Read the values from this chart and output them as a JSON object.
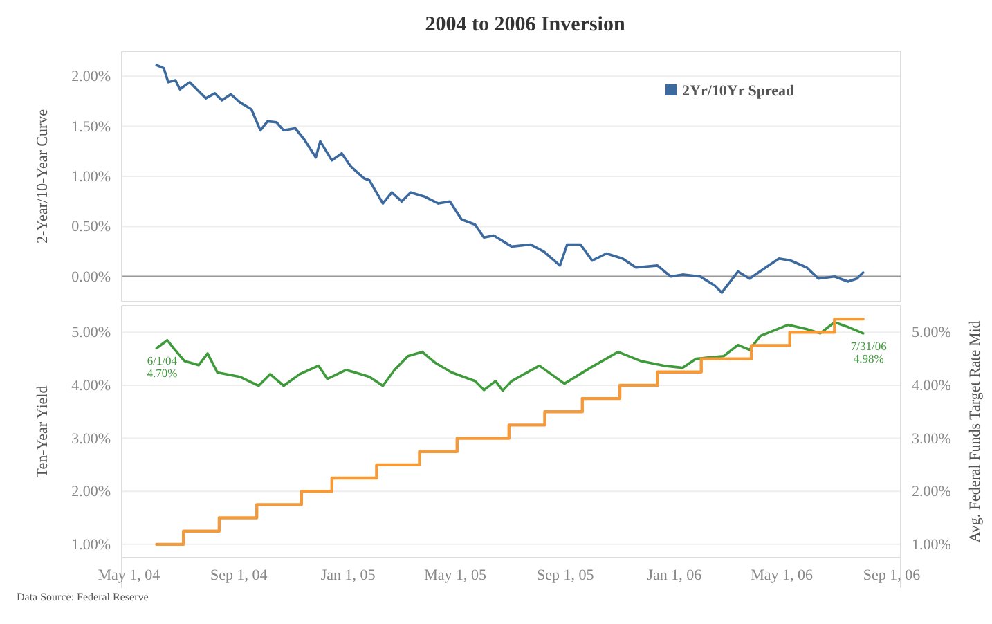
{
  "chart_data": [
    {
      "type": "line",
      "title": "2004 to 2006 Inversion",
      "ylabel": "2-Year/10-Year Curve",
      "xlim": [
        "2004-04-23",
        "2006-09-11"
      ],
      "ylim": [
        -0.25,
        2.25
      ],
      "yticks": [
        {
          "value": 0,
          "label": "0.00%"
        },
        {
          "value": 0.5,
          "label": "0.50%"
        },
        {
          "value": 1,
          "label": "1.00%"
        },
        {
          "value": 1.5,
          "label": "1.50%"
        },
        {
          "value": 2,
          "label": "2.00%"
        }
      ],
      "grid": "y",
      "legend": "top right",
      "tick_labels": "y",
      "ref_lines": [
        {
          "axis": "y",
          "value": 0,
          "color": "#999999"
        }
      ],
      "series": [
        {
          "name": "2Yr/10Yr Spread",
          "color": "#3d6a9e",
          "x": [
            "2004-06-01",
            "2004-06-09",
            "2004-06-14",
            "2004-06-22",
            "2004-06-27",
            "2004-07-08",
            "2004-07-26",
            "2004-08-05",
            "2004-08-13",
            "2004-08-23",
            "2004-09-02",
            "2004-09-15",
            "2004-09-25",
            "2004-10-03",
            "2004-10-13",
            "2004-10-21",
            "2004-11-03",
            "2004-11-13",
            "2004-11-26",
            "2004-12-01",
            "2004-12-14",
            "2004-12-25",
            "2005-01-04",
            "2005-01-19",
            "2005-01-25",
            "2005-02-09",
            "2005-02-19",
            "2005-03-02",
            "2005-03-12",
            "2005-03-27",
            "2005-04-12",
            "2005-04-25",
            "2005-05-08",
            "2005-05-23",
            "2005-06-02",
            "2005-06-13",
            "2005-07-03",
            "2005-07-24",
            "2005-08-08",
            "2005-08-26",
            "2005-09-03",
            "2005-09-18",
            "2005-10-01",
            "2005-10-17",
            "2005-11-04",
            "2005-11-19",
            "2005-12-13",
            "2005-12-28",
            "2006-01-10",
            "2006-01-30",
            "2006-02-15",
            "2006-02-23",
            "2006-03-13",
            "2006-03-26",
            "2006-04-13",
            "2006-04-28",
            "2006-05-11",
            "2006-05-29",
            "2006-06-11",
            "2006-06-29",
            "2006-07-14",
            "2006-07-24",
            "2006-07-31"
          ],
          "values": [
            2.11,
            2.08,
            1.94,
            1.96,
            1.87,
            1.94,
            1.78,
            1.83,
            1.76,
            1.82,
            1.74,
            1.67,
            1.46,
            1.55,
            1.54,
            1.46,
            1.48,
            1.37,
            1.19,
            1.35,
            1.16,
            1.23,
            1.1,
            0.98,
            0.96,
            0.73,
            0.84,
            0.75,
            0.84,
            0.8,
            0.73,
            0.75,
            0.57,
            0.52,
            0.39,
            0.41,
            0.3,
            0.32,
            0.25,
            0.11,
            0.32,
            0.32,
            0.16,
            0.23,
            0.18,
            0.09,
            0.11,
            0.0,
            0.02,
            0.0,
            -0.09,
            -0.16,
            0.05,
            -0.02,
            0.09,
            0.18,
            0.16,
            0.09,
            -0.02,
            0.0,
            -0.05,
            -0.02,
            0.04
          ]
        }
      ]
    },
    {
      "type": "line",
      "ylabel": "Ten-Year Yield",
      "y2label": "Avg. Federal Funds Target Rate Mid",
      "xlim": [
        "2004-04-23",
        "2006-09-11"
      ],
      "xticks": [
        {
          "value": "2004-05-01",
          "label": "May 1, 04"
        },
        {
          "value": "2004-09-01",
          "label": "Sep 1, 04"
        },
        {
          "value": "2005-01-01",
          "label": "Jan 1, 05"
        },
        {
          "value": "2005-05-01",
          "label": "May 1, 05"
        },
        {
          "value": "2005-09-01",
          "label": "Sep 1, 05"
        },
        {
          "value": "2006-01-01",
          "label": "Jan 1, 06"
        },
        {
          "value": "2006-05-01",
          "label": "May 1, 06"
        },
        {
          "value": "2006-09-01",
          "label": "Sep 1, 06"
        }
      ],
      "ylim": [
        0.75,
        5.5
      ],
      "yticks": [
        {
          "value": 1,
          "label": "1.00%"
        },
        {
          "value": 2,
          "label": "2.00%"
        },
        {
          "value": 3,
          "label": "3.00%"
        },
        {
          "value": 4,
          "label": "4.00%"
        },
        {
          "value": 5,
          "label": "5.00%"
        }
      ],
      "y2lim": [
        0.75,
        5.5
      ],
      "y2ticks": [
        {
          "value": 1,
          "label": "1.00%"
        },
        {
          "value": 2,
          "label": "2.00%"
        },
        {
          "value": 3,
          "label": "3.00%"
        },
        {
          "value": 4,
          "label": "4.00%"
        },
        {
          "value": 5,
          "label": "5.00%"
        }
      ],
      "grid": "y",
      "annotations": [
        {
          "text": "6/1/04\n4.70%",
          "x": "2004-06-01",
          "y": 4.7
        },
        {
          "text": "7/31/06\n4.98%",
          "x": "2006-07-31",
          "y": 4.98
        },
        "Data Source: Federal Reserve"
      ],
      "series": [
        {
          "color": "#3e9a3a",
          "x": [
            "2004-06-01",
            "2004-06-13",
            "2004-06-20",
            "2004-07-02",
            "2004-07-18",
            "2004-07-28",
            "2004-08-08",
            "2004-09-02",
            "2004-09-23",
            "2004-10-06",
            "2004-10-21",
            "2004-11-08",
            "2004-11-29",
            "2004-12-09",
            "2004-12-30",
            "2005-01-25",
            "2005-02-09",
            "2005-02-22",
            "2005-03-09",
            "2005-03-25",
            "2005-04-09",
            "2005-04-27",
            "2005-05-23",
            "2005-06-02",
            "2005-06-15",
            "2005-06-23",
            "2005-07-03",
            "2005-08-03",
            "2005-08-31",
            "2005-09-29",
            "2005-10-30",
            "2005-11-24",
            "2005-12-20",
            "2006-01-10",
            "2006-01-25",
            "2006-02-25",
            "2006-03-13",
            "2006-03-26",
            "2006-04-07",
            "2006-05-08",
            "2006-05-29",
            "2006-06-13",
            "2006-06-29",
            "2006-07-14",
            "2006-07-31"
          ],
          "values": [
            4.7,
            4.85,
            4.7,
            4.46,
            4.38,
            4.6,
            4.24,
            4.16,
            3.99,
            4.21,
            3.99,
            4.21,
            4.37,
            4.12,
            4.29,
            4.16,
            3.99,
            4.29,
            4.55,
            4.63,
            4.42,
            4.24,
            4.08,
            3.91,
            4.08,
            3.9,
            4.08,
            4.37,
            4.03,
            4.33,
            4.63,
            4.46,
            4.37,
            4.33,
            4.5,
            4.55,
            4.76,
            4.67,
            4.93,
            5.14,
            5.06,
            4.98,
            5.19,
            5.1,
            4.98
          ]
        },
        {
          "type": "step",
          "axis": "y2",
          "color": "#f39b3c",
          "x": [
            "2004-06-01",
            "2004-07-01",
            "2004-08-10",
            "2004-09-21",
            "2004-11-10",
            "2004-12-14",
            "2005-02-02",
            "2005-03-22",
            "2005-05-03",
            "2005-06-30",
            "2005-08-09",
            "2005-09-20",
            "2005-11-01",
            "2005-12-13",
            "2006-01-31",
            "2006-03-28",
            "2006-05-10",
            "2006-06-29",
            "2006-07-31"
          ],
          "values": [
            1.0,
            1.25,
            1.5,
            1.75,
            2.0,
            2.25,
            2.5,
            2.75,
            3.0,
            3.25,
            3.5,
            3.75,
            4.0,
            4.25,
            4.5,
            4.75,
            5.0,
            5.25,
            5.25
          ]
        }
      ]
    }
  ]
}
